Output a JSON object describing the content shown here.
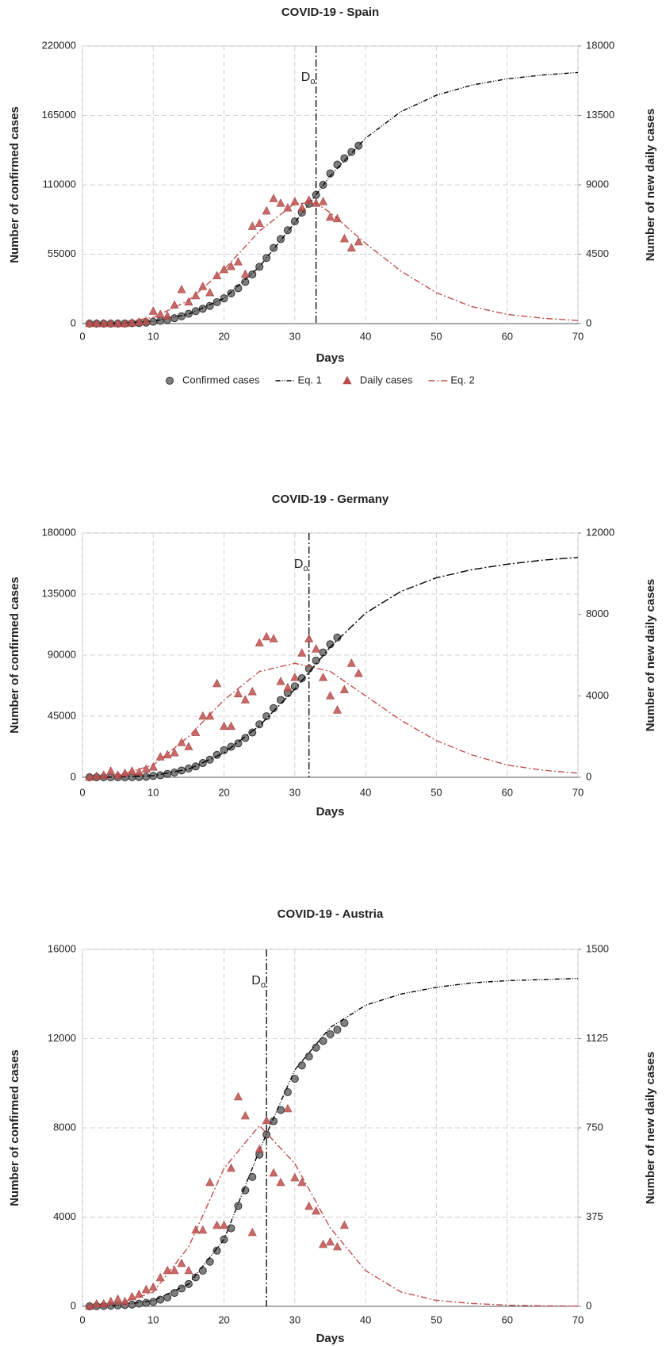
{
  "chart_data": [
    {
      "type": "line",
      "title": "COVID-19 - Spain",
      "x_label": "Days",
      "y_label": "Number of confirmed cases",
      "y2_label": "Number of new daily cases",
      "xlim": [
        0,
        70
      ],
      "xticks": [
        0,
        10,
        20,
        30,
        40,
        50,
        60,
        70
      ],
      "ylim": [
        0,
        220000
      ],
      "yticks": [
        0,
        55000,
        110000,
        165000,
        220000
      ],
      "y2lim": [
        0,
        18000
      ],
      "y2ticks": [
        0,
        4500,
        9000,
        13500,
        18000
      ],
      "grid": true,
      "vline_x": 33,
      "vline_label": "D",
      "vline_label_sub": "o",
      "legend": "bottom",
      "series": [
        {
          "name": "Confirmed cases",
          "color": "#7f7f7f",
          "marker": "circle",
          "x": [
            1,
            2,
            3,
            4,
            5,
            6,
            7,
            8,
            9,
            10,
            11,
            12,
            13,
            14,
            15,
            16,
            17,
            18,
            19,
            20,
            21,
            22,
            23,
            24,
            25,
            26,
            27,
            28,
            29,
            30,
            31,
            32,
            33,
            34,
            35,
            36,
            37,
            38,
            39
          ],
          "values": [
            0,
            0,
            0,
            0,
            0,
            100,
            300,
            500,
            800,
            1500,
            2200,
            3000,
            4300,
            5800,
            7800,
            9900,
            11800,
            14000,
            17000,
            20000,
            24000,
            28000,
            33000,
            39000,
            45000,
            52000,
            60000,
            67000,
            74000,
            81000,
            88000,
            95000,
            102000,
            110000,
            119000,
            126000,
            131000,
            136000,
            141000
          ]
        },
        {
          "name": "Eq. 1",
          "color": "#000000",
          "marker": "none",
          "dash": "6 2 1 2 1 2",
          "x": [
            1,
            5,
            10,
            15,
            20,
            25,
            30,
            35,
            40,
            45,
            50,
            55,
            60,
            65,
            70
          ],
          "values": [
            0,
            200,
            1800,
            7500,
            20000,
            45000,
            80000,
            117000,
            147000,
            168000,
            181000,
            189000,
            194000,
            197000,
            199000
          ]
        },
        {
          "name": "Daily cases",
          "color": "#c0504d",
          "marker": "triangle",
          "axis": "y2",
          "x": [
            1,
            2,
            3,
            4,
            5,
            6,
            7,
            8,
            9,
            10,
            11,
            12,
            13,
            14,
            15,
            16,
            17,
            18,
            19,
            20,
            21,
            22,
            23,
            24,
            25,
            26,
            27,
            28,
            29,
            30,
            31,
            32,
            33,
            34,
            35,
            36,
            37,
            38,
            39
          ],
          "values": [
            0,
            0,
            0,
            0,
            0,
            0,
            50,
            100,
            150,
            800,
            600,
            500,
            1200,
            2200,
            1400,
            1800,
            2400,
            2000,
            3100,
            3500,
            3700,
            4000,
            3200,
            6300,
            6500,
            7300,
            8100,
            7800,
            7500,
            7900,
            7500,
            8000,
            7800,
            7900,
            6900,
            6800,
            5500,
            4900,
            5300
          ]
        },
        {
          "name": "Eq. 2",
          "color": "#c0504d",
          "marker": "none",
          "dash": "8 3 2 3",
          "axis": "y2",
          "x": [
            1,
            5,
            10,
            15,
            20,
            25,
            30,
            33,
            35,
            40,
            45,
            50,
            55,
            60,
            65,
            70
          ],
          "values": [
            0,
            50,
            400,
            1500,
            3500,
            6000,
            7800,
            7800,
            7200,
            5200,
            3400,
            2000,
            1100,
            600,
            350,
            200
          ]
        }
      ]
    },
    {
      "type": "line",
      "title": "COVID-19 - Germany",
      "x_label": "Days",
      "y_label": "Number of confirmed cases",
      "y2_label": "Number of new daily cases",
      "xlim": [
        0,
        70
      ],
      "xticks": [
        0,
        10,
        20,
        30,
        40,
        50,
        60,
        70
      ],
      "ylim": [
        0,
        180000
      ],
      "yticks": [
        0,
        45000,
        90000,
        135000,
        180000
      ],
      "y2lim": [
        0,
        12000
      ],
      "y2ticks": [
        0,
        4000,
        8000,
        12000
      ],
      "grid": true,
      "vline_x": 32,
      "vline_label": "D",
      "vline_label_sub": "o",
      "series": [
        {
          "color": "#7f7f7f",
          "marker": "circle",
          "x": [
            1,
            2,
            3,
            4,
            5,
            6,
            7,
            8,
            9,
            10,
            11,
            12,
            13,
            14,
            15,
            16,
            17,
            18,
            19,
            20,
            21,
            22,
            23,
            24,
            25,
            26,
            27,
            28,
            29,
            30,
            31,
            32,
            33,
            34,
            35,
            36
          ],
          "values": [
            0,
            0,
            0,
            0,
            0,
            0,
            100,
            200,
            400,
            1000,
            1500,
            2500,
            3500,
            5000,
            6500,
            8000,
            10500,
            13000,
            16500,
            20000,
            22500,
            25000,
            29000,
            33000,
            39000,
            45000,
            51000,
            57000,
            62000,
            67000,
            73000,
            80000,
            86000,
            92000,
            98000,
            103000
          ]
        },
        {
          "color": "#000000",
          "marker": "none",
          "dash": "10 3 2 3",
          "x": [
            1,
            5,
            10,
            15,
            20,
            25,
            30,
            35,
            40,
            45,
            50,
            55,
            60,
            65,
            70
          ],
          "values": [
            0,
            200,
            1200,
            6000,
            18000,
            38000,
            65000,
            96000,
            121000,
            137000,
            147000,
            153000,
            157000,
            160000,
            162000
          ]
        },
        {
          "color": "#c0504d",
          "marker": "triangle",
          "axis": "y2",
          "x": [
            1,
            2,
            3,
            4,
            5,
            6,
            7,
            8,
            9,
            10,
            11,
            12,
            13,
            14,
            15,
            16,
            17,
            18,
            19,
            20,
            21,
            22,
            23,
            24,
            25,
            26,
            27,
            28,
            29,
            30,
            31,
            32,
            33,
            34,
            35,
            36,
            37,
            38,
            39
          ],
          "values": [
            0,
            50,
            100,
            300,
            100,
            200,
            300,
            250,
            400,
            500,
            1000,
            1100,
            1200,
            1700,
            1500,
            2200,
            3000,
            3000,
            4600,
            2500,
            2500,
            4100,
            3800,
            4200,
            6600,
            6900,
            6800,
            4700,
            4400,
            4900,
            6100,
            6800,
            6300,
            4900,
            4000,
            3300,
            4300,
            5600,
            5100
          ]
        },
        {
          "color": "#c0504d",
          "marker": "none",
          "dash": "8 3 2 3",
          "axis": "y2",
          "x": [
            1,
            5,
            10,
            15,
            20,
            25,
            30,
            35,
            40,
            45,
            50,
            55,
            60,
            65,
            70
          ],
          "values": [
            0,
            100,
            600,
            2000,
            3800,
            5200,
            5600,
            5200,
            4000,
            2800,
            1800,
            1100,
            600,
            350,
            200
          ]
        }
      ]
    },
    {
      "type": "line",
      "title": "COVID-19 - Austria",
      "x_label": "Days",
      "y_label": "Number of confirmed cases",
      "y2_label": "Number of new daily cases",
      "xlim": [
        0,
        70
      ],
      "xticks": [
        0,
        10,
        20,
        30,
        40,
        50,
        60,
        70
      ],
      "ylim": [
        0,
        16000
      ],
      "yticks": [
        0,
        4000,
        8000,
        12000,
        16000
      ],
      "y2lim": [
        0,
        1500
      ],
      "y2ticks": [
        0,
        375,
        750,
        1125,
        1500
      ],
      "grid": true,
      "vline_x": 26,
      "vline_label": "D",
      "vline_label_sub": "o",
      "series": [
        {
          "color": "#7f7f7f",
          "marker": "circle",
          "x": [
            1,
            2,
            3,
            4,
            5,
            6,
            7,
            8,
            9,
            10,
            11,
            12,
            13,
            14,
            15,
            16,
            17,
            18,
            19,
            20,
            21,
            22,
            23,
            24,
            25,
            26,
            27,
            28,
            29,
            30,
            31,
            32,
            33,
            34,
            35,
            36,
            37
          ],
          "values": [
            0,
            10,
            20,
            30,
            40,
            60,
            80,
            120,
            160,
            200,
            300,
            400,
            600,
            800,
            1000,
            1300,
            1600,
            2000,
            2500,
            3000,
            3500,
            4500,
            5200,
            5800,
            6800,
            7700,
            8300,
            8800,
            9600,
            10200,
            10800,
            11200,
            11600,
            11900,
            12200,
            12400,
            12700
          ]
        },
        {
          "color": "#000000",
          "marker": "none",
          "dash": "6 2 1 2 1 2",
          "x": [
            1,
            5,
            10,
            15,
            20,
            25,
            30,
            35,
            40,
            45,
            50,
            55,
            60,
            65,
            70
          ],
          "values": [
            0,
            50,
            250,
            1000,
            3000,
            7000,
            10600,
            12500,
            13500,
            14000,
            14300,
            14500,
            14600,
            14650,
            14700
          ]
        },
        {
          "color": "#c0504d",
          "marker": "triangle",
          "axis": "y2",
          "x": [
            1,
            2,
            3,
            4,
            5,
            6,
            7,
            8,
            9,
            10,
            11,
            12,
            13,
            14,
            15,
            16,
            17,
            18,
            19,
            20,
            21,
            22,
            23,
            24,
            25,
            26,
            27,
            28,
            29,
            30,
            31,
            32,
            33,
            34,
            35,
            36,
            37
          ],
          "values": [
            0,
            10,
            10,
            20,
            30,
            20,
            40,
            50,
            70,
            80,
            120,
            150,
            150,
            180,
            150,
            320,
            320,
            520,
            340,
            340,
            580,
            880,
            800,
            310,
            660,
            780,
            560,
            520,
            830,
            540,
            520,
            420,
            400,
            260,
            270,
            250,
            340
          ]
        },
        {
          "color": "#c0504d",
          "marker": "none",
          "dash": "8 3 2 3",
          "axis": "y2",
          "x": [
            1,
            5,
            10,
            15,
            20,
            25,
            30,
            35,
            40,
            45,
            50,
            55,
            60,
            65,
            70
          ],
          "values": [
            0,
            10,
            60,
            250,
            580,
            760,
            600,
            330,
            150,
            60,
            25,
            12,
            5,
            2,
            1
          ]
        }
      ]
    }
  ]
}
